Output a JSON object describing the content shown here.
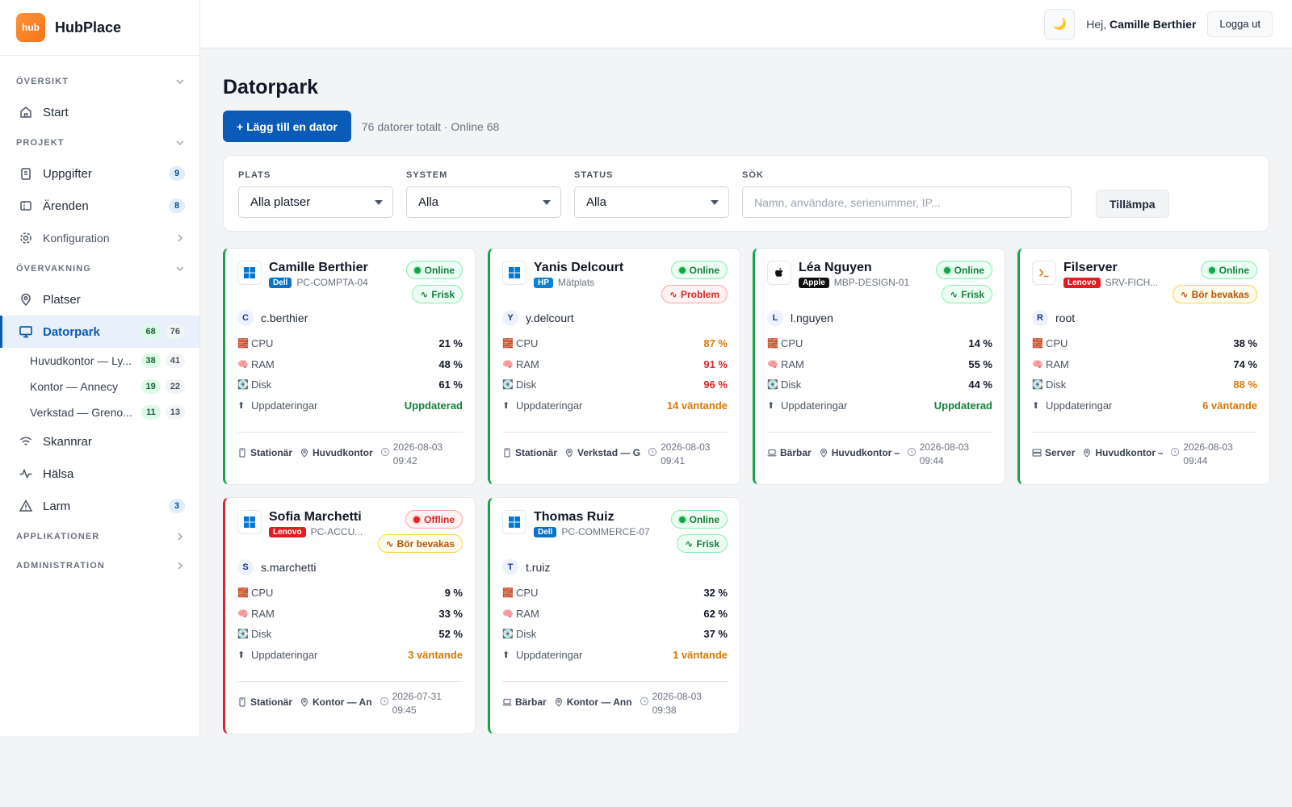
{
  "brand": {
    "logo_text": "hub",
    "name": "HubPlace"
  },
  "sidebar": {
    "sections": {
      "overview": "ÖVERSIKT",
      "project": "PROJEKT",
      "monitoring": "ÖVERVAKNING",
      "applications": "APPLIKATIONER",
      "administration": "ADMINISTRATION"
    },
    "items": {
      "start": "Start",
      "tasks": {
        "label": "Uppgifter",
        "badge": "9"
      },
      "tickets": {
        "label": "Ärenden",
        "badge": "8"
      },
      "config": "Konfiguration",
      "places": "Platser",
      "fleet": {
        "label": "Datorpark",
        "online": "68",
        "total": "76"
      },
      "scanners": "Skannrar",
      "health": "Hälsa",
      "alarms": {
        "label": "Larm",
        "badge": "3"
      }
    },
    "sub_items": [
      {
        "label": "Huvudkontor — Ly...",
        "online": "38",
        "total": "41"
      },
      {
        "label": "Kontor — Annecy",
        "online": "19",
        "total": "22"
      },
      {
        "label": "Verkstad — Greno...",
        "online": "11",
        "total": "13"
      }
    ]
  },
  "topbar": {
    "theme_icon": "🌙",
    "greeting_prefix": "Hej,",
    "user_name": "Camille Berthier",
    "logout": "Logga ut"
  },
  "main": {
    "title": "Datorpark",
    "add_button": "+ Lägg till en dator",
    "summary": "76 datorer totalt · Online 68"
  },
  "filters": {
    "place": {
      "label": "PLATS",
      "value": "Alla platser"
    },
    "system": {
      "label": "SYSTEM",
      "value": "Alla"
    },
    "status": {
      "label": "STATUS",
      "value": "Alla"
    },
    "search": {
      "label": "SÖK",
      "placeholder": "Namn, användare, serienummer, IP..."
    },
    "apply": "Tillämpa"
  },
  "metric_labels": {
    "cpu": "CPU",
    "ram": "RAM",
    "disk": "Disk",
    "updates": "Uppdateringar"
  },
  "colors": {
    "accent": "#0a5bb5",
    "online": "#16a34a",
    "offline": "#dc2626",
    "warning": "#d97706",
    "dell": "#0a72c7",
    "hp": "#0a82d6",
    "apple": "#111111",
    "lenovo": "#e11d21"
  },
  "computers": [
    {
      "name": "Camille Berthier",
      "os": "windows",
      "brand": "Dell",
      "brand_color": "#0a72c7",
      "host": "PC-COMPTA-04",
      "status": "Online",
      "health": "Frisk",
      "health_level": "healthy",
      "user_initial": "C",
      "user": "c.berthier",
      "cpu": "21 %",
      "cpu_level": "",
      "ram": "48 %",
      "ram_level": "",
      "disk": "61 %",
      "disk_level": "",
      "updates": "Uppdaterad",
      "updates_level": "ok",
      "type": "Stationär",
      "type_icon": "desktop",
      "location": "Huvudkontor",
      "date": "2026-08-03",
      "time": "09:42"
    },
    {
      "name": "Yanis Delcourt",
      "os": "windows",
      "brand": "HP",
      "brand_color": "#0a82d6",
      "host": "Mätplats",
      "status": "Online",
      "health": "Problem",
      "health_level": "problem",
      "user_initial": "Y",
      "user": "y.delcourt",
      "cpu": "87 %",
      "cpu_level": "warn",
      "ram": "91 %",
      "ram_level": "crit",
      "disk": "96 %",
      "disk_level": "crit",
      "updates": "14 väntande",
      "updates_level": "warn",
      "type": "Stationär",
      "type_icon": "desktop",
      "location": "Verkstad — G",
      "date": "2026-08-03",
      "time": "09:41"
    },
    {
      "name": "Léa Nguyen",
      "os": "apple",
      "brand": "Apple",
      "brand_color": "#111111",
      "host": "MBP-DESIGN-01",
      "status": "Online",
      "health": "Frisk",
      "health_level": "healthy",
      "user_initial": "L",
      "user": "l.nguyen",
      "cpu": "14 %",
      "cpu_level": "",
      "ram": "55 %",
      "ram_level": "",
      "disk": "44 %",
      "disk_level": "",
      "updates": "Uppdaterad",
      "updates_level": "ok",
      "type": "Bärbar",
      "type_icon": "laptop",
      "location": "Huvudkontor —",
      "date": "2026-08-03",
      "time": "09:44"
    },
    {
      "name": "Filserver",
      "os": "terminal",
      "brand": "Lenovo",
      "brand_color": "#e11d21",
      "host": "SRV-FICH...",
      "status": "Online",
      "health": "Bör bevakas",
      "health_level": "watch",
      "user_initial": "R",
      "user": "root",
      "cpu": "38 %",
      "cpu_level": "",
      "ram": "74 %",
      "ram_level": "",
      "disk": "88 %",
      "disk_level": "warn",
      "updates": "6 väntande",
      "updates_level": "warn",
      "type": "Server",
      "type_icon": "server",
      "location": "Huvudkontor —",
      "date": "2026-08-03",
      "time": "09:44"
    },
    {
      "name": "Sofia Marchetti",
      "os": "windows",
      "brand": "Lenovo",
      "brand_color": "#e11d21",
      "host": "PC-ACCU...",
      "status": "Offline",
      "health": "Bör bevakas",
      "health_level": "watch",
      "user_initial": "S",
      "user": "s.marchetti",
      "cpu": "9 %",
      "cpu_level": "",
      "ram": "33 %",
      "ram_level": "",
      "disk": "52 %",
      "disk_level": "",
      "updates": "3 väntande",
      "updates_level": "warn",
      "type": "Stationär",
      "type_icon": "desktop",
      "location": "Kontor — An",
      "date": "2026-07-31",
      "time": "09:45"
    },
    {
      "name": "Thomas Ruiz",
      "os": "windows",
      "brand": "Dell",
      "brand_color": "#0a72c7",
      "host": "PC-COMMERCE-07",
      "status": "Online",
      "health": "Frisk",
      "health_level": "healthy",
      "user_initial": "T",
      "user": "t.ruiz",
      "cpu": "32 %",
      "cpu_level": "",
      "ram": "62 %",
      "ram_level": "",
      "disk": "37 %",
      "disk_level": "",
      "updates": "1 väntande",
      "updates_level": "warn",
      "type": "Bärbar",
      "type_icon": "laptop",
      "location": "Kontor — Ann",
      "date": "2026-08-03",
      "time": "09:38"
    }
  ]
}
